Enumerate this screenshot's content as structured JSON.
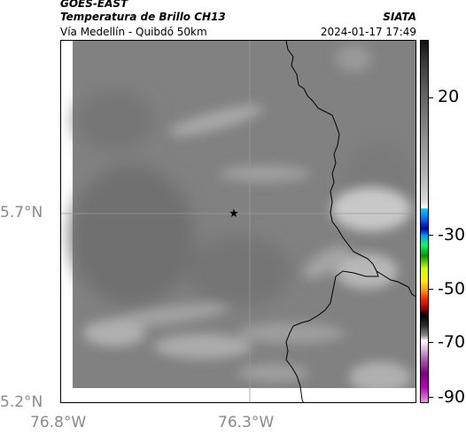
{
  "header": {
    "satellite": "GOES-EAST",
    "product": "Temperatura de Brillo CH13",
    "brand": "SIATA",
    "region": "Vía Medellín - Quibdó 50km",
    "datetime": "2024-01-17 17:49"
  },
  "map": {
    "lat_labels": [
      "5.7°N",
      "5.2°N"
    ],
    "lon_labels": [
      "76.8°W",
      "76.3°W"
    ],
    "marker_icon": "star-icon",
    "fill_color": "#808080",
    "border_color": "#000000"
  },
  "colorbar": {
    "ticks": [
      "20",
      "-30",
      "-50",
      "-70",
      "-90"
    ]
  }
}
